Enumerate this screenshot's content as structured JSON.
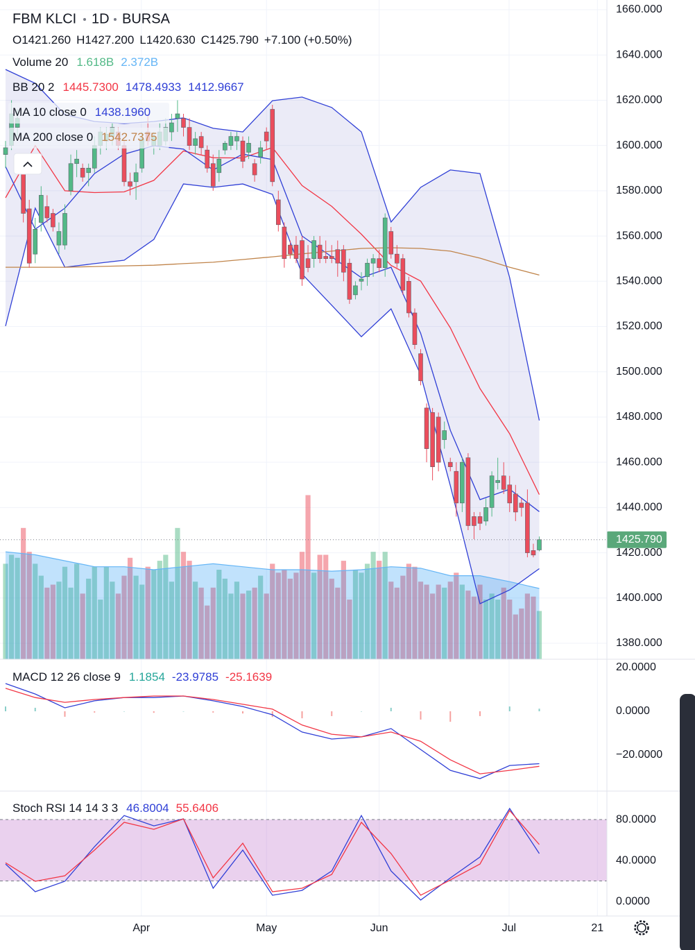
{
  "chart_data": [
    {
      "type": "candlestick",
      "title": "FBM KLCI",
      "interval": "1D",
      "exchange": "BURSA",
      "ohlc": [
        "O1421.260",
        "H1427.200",
        "L1420.630",
        "C1425.790",
        "+7.100 (+0.50%)"
      ],
      "up_color": "#53b987",
      "down_color": "#eb4d5c",
      "ylim": [
        1372.95,
        1664.3
      ],
      "yticks": [
        {
          "value": 1660,
          "label": "1660.000"
        },
        {
          "value": 1640,
          "label": "1640.000"
        },
        {
          "value": 1620,
          "label": "1620.000"
        },
        {
          "value": 1600,
          "label": "1600.000"
        },
        {
          "value": 1580,
          "label": "1580.000"
        },
        {
          "value": 1560,
          "label": "1560.000"
        },
        {
          "value": 1540,
          "label": "1540.000"
        },
        {
          "value": 1520,
          "label": "1520.000"
        },
        {
          "value": 1500,
          "label": "1500.000"
        },
        {
          "value": 1480,
          "label": "1480.000"
        },
        {
          "value": 1460,
          "label": "1460.000"
        },
        {
          "value": 1440,
          "label": "1440.000"
        },
        {
          "value": 1420,
          "label": "1420.000"
        },
        {
          "value": 1400,
          "label": "1400.000"
        },
        {
          "value": 1380,
          "label": "1380.000"
        }
      ],
      "xticks": [
        {
          "value": 22.9,
          "label": "Apr"
        },
        {
          "value": 44,
          "label": "May"
        },
        {
          "value": 63,
          "label": "Jun"
        },
        {
          "value": 84.9,
          "label": "Jul"
        },
        {
          "value": 99.8,
          "label": "21"
        }
      ],
      "grid": true,
      "last_price": {
        "value": 1425.79,
        "label": "1425.790",
        "color": "#5aa87a"
      },
      "candles": [
        [
          1596,
          1602,
          1590,
          1599
        ],
        [
          1600,
          1620,
          1598,
          1614
        ],
        [
          1608,
          1616,
          1604,
          1612
        ],
        [
          1590,
          1596,
          1566,
          1570
        ],
        [
          1572,
          1576,
          1546,
          1548
        ],
        [
          1552,
          1568,
          1548,
          1563
        ],
        [
          1566,
          1582,
          1562,
          1578
        ],
        [
          1573,
          1578,
          1566,
          1568
        ],
        [
          1570,
          1572,
          1562,
          1564
        ],
        [
          1556,
          1566,
          1552,
          1562
        ],
        [
          1556,
          1574,
          1554,
          1570
        ],
        [
          1580,
          1596,
          1578,
          1592
        ],
        [
          1592,
          1598,
          1586,
          1594
        ],
        [
          1590,
          1592,
          1584,
          1586
        ],
        [
          1588,
          1592,
          1582,
          1590
        ],
        [
          1590,
          1604,
          1588,
          1600
        ],
        [
          1600,
          1608,
          1596,
          1606
        ],
        [
          1602,
          1608,
          1598,
          1605
        ],
        [
          1604,
          1610,
          1600,
          1608
        ],
        [
          1606,
          1608,
          1598,
          1600
        ],
        [
          1600,
          1602,
          1582,
          1584
        ],
        [
          1584,
          1588,
          1578,
          1582
        ],
        [
          1584,
          1592,
          1576,
          1588
        ],
        [
          1590,
          1606,
          1588,
          1603
        ],
        [
          1606,
          1614,
          1600,
          1602
        ],
        [
          1600,
          1606,
          1596,
          1604
        ],
        [
          1600,
          1610,
          1598,
          1606
        ],
        [
          1602,
          1612,
          1600,
          1608
        ],
        [
          1606,
          1614,
          1602,
          1610
        ],
        [
          1612,
          1620,
          1606,
          1614
        ],
        [
          1612,
          1614,
          1604,
          1608
        ],
        [
          1608,
          1612,
          1598,
          1600
        ],
        [
          1600,
          1606,
          1596,
          1603
        ],
        [
          1604,
          1606,
          1596,
          1599
        ],
        [
          1598,
          1600,
          1588,
          1590
        ],
        [
          1592,
          1596,
          1580,
          1582
        ],
        [
          1588,
          1598,
          1584,
          1594
        ],
        [
          1598,
          1602,
          1596,
          1601
        ],
        [
          1600,
          1606,
          1598,
          1604
        ],
        [
          1602,
          1606,
          1598,
          1604
        ],
        [
          1602,
          1604,
          1590,
          1593
        ],
        [
          1597,
          1604,
          1594,
          1601
        ],
        [
          1592,
          1594,
          1584,
          1587
        ],
        [
          1595,
          1602,
          1592,
          1599
        ],
        [
          1606,
          1608,
          1598,
          1602
        ],
        [
          1616,
          1618,
          1582,
          1584
        ],
        [
          1576,
          1580,
          1562,
          1565
        ],
        [
          1564,
          1566,
          1546,
          1550
        ],
        [
          1556,
          1558,
          1550,
          1552
        ],
        [
          1556,
          1560,
          1548,
          1550
        ],
        [
          1558,
          1560,
          1538,
          1541
        ],
        [
          1550,
          1556,
          1544,
          1546
        ],
        [
          1550,
          1560,
          1546,
          1558
        ],
        [
          1556,
          1560,
          1548,
          1550
        ],
        [
          1551,
          1558,
          1548,
          1550
        ],
        [
          1551,
          1556,
          1548,
          1550
        ],
        [
          1554,
          1558,
          1542,
          1548
        ],
        [
          1554,
          1556,
          1540,
          1544
        ],
        [
          1548,
          1550,
          1530,
          1532
        ],
        [
          1534,
          1540,
          1532,
          1538
        ],
        [
          1540,
          1544,
          1536,
          1541
        ],
        [
          1542,
          1550,
          1538,
          1548
        ],
        [
          1548,
          1552,
          1542,
          1550
        ],
        [
          1550,
          1554,
          1544,
          1546
        ],
        [
          1546,
          1570,
          1542,
          1568
        ],
        [
          1562,
          1564,
          1550,
          1552
        ],
        [
          1552,
          1556,
          1546,
          1548
        ],
        [
          1550,
          1552,
          1534,
          1536
        ],
        [
          1540,
          1542,
          1524,
          1526
        ],
        [
          1526,
          1528,
          1510,
          1512
        ],
        [
          1508,
          1510,
          1494,
          1496
        ],
        [
          1484,
          1486,
          1460,
          1466
        ],
        [
          1482,
          1484,
          1452,
          1458
        ],
        [
          1480,
          1482,
          1456,
          1460
        ],
        [
          1470,
          1478,
          1466,
          1474
        ],
        [
          1460,
          1462,
          1456,
          1458
        ],
        [
          1456,
          1460,
          1436,
          1442
        ],
        [
          1442,
          1462,
          1438,
          1460
        ],
        [
          1462,
          1464,
          1430,
          1432
        ],
        [
          1436,
          1438,
          1426,
          1432
        ],
        [
          1436,
          1438,
          1430,
          1433
        ],
        [
          1434,
          1444,
          1432,
          1440
        ],
        [
          1440,
          1456,
          1436,
          1454
        ],
        [
          1451,
          1462,
          1448,
          1452
        ],
        [
          1454,
          1460,
          1446,
          1448
        ],
        [
          1450,
          1454,
          1438,
          1442
        ],
        [
          1446,
          1450,
          1434,
          1438
        ],
        [
          1442,
          1444,
          1436,
          1440
        ],
        [
          1442,
          1448,
          1418,
          1420
        ],
        [
          1421,
          1424,
          1418,
          1419
        ],
        [
          1421.26,
          1427.2,
          1420.63,
          1425.79
        ]
      ],
      "volume": {
        "label": "Volume 20",
        "vlim": [
          0,
          8
        ],
        "value_label": "1.618B",
        "up_color": "rgba(83,185,135,0.5)",
        "down_color": "rgba(235,77,92,0.5)",
        "values": [
          3.2,
          3.5,
          3.4,
          4.4,
          3.6,
          3.2,
          2.8,
          2.4,
          2.5,
          2.6,
          3.1,
          2.4,
          3.2,
          2.2,
          2.7,
          3.1,
          2.0,
          3.1,
          2.6,
          2.2,
          2.8,
          3.4,
          2.8,
          2.5,
          3.1,
          3.0,
          3.3,
          3.5,
          2.6,
          4.4,
          3.6,
          3.3,
          2.6,
          2.4,
          1.8,
          2.4,
          3.0,
          2.7,
          2.2,
          2.6,
          2.2,
          2.3,
          2.4,
          2.8,
          2.2,
          3.2,
          2.9,
          3.0,
          2.7,
          2.9,
          3.6,
          5.5,
          2.9,
          3.5,
          3.5,
          2.7,
          2.4,
          3.3,
          2.0,
          3.0,
          2.9,
          3.2,
          3.6,
          3.3,
          3.6,
          2.6,
          2.4,
          2.8,
          3.2,
          3.1,
          2.6,
          2.5,
          2.2,
          2.5,
          2.4,
          2.6,
          2.9,
          2.5,
          2.3,
          2.1,
          2.5,
          2.0,
          2.2,
          2.0,
          2.4,
          2.0,
          1.5,
          1.7,
          2.2,
          2.1,
          1.618
        ],
        "ma": {
          "color": "#64b5f6",
          "fill": "rgba(33,150,243,0.28)",
          "value_label": "2.372B",
          "values": [
            3.6,
            3.5,
            3.3,
            3.1,
            3.1,
            3.0,
            3.1,
            3.2,
            3.1,
            3.0,
            3.0,
            2.95,
            3.0,
            3.1,
            3.05,
            2.8,
            2.8,
            2.6,
            2.372
          ]
        }
      },
      "line_x": [
        0,
        5,
        10,
        15,
        20,
        25,
        30,
        35,
        40,
        45,
        50,
        55,
        60,
        65,
        70,
        75,
        80,
        85,
        90
      ],
      "bb": {
        "label": "BB 20 2",
        "fill": "rgba(120,123,200,0.15)",
        "series": [
          {
            "color": "#f23645",
            "value_label": "1445.7300",
            "values": [
              1576.9,
              1600,
              1580,
              1579.2,
              1579.5,
              1584.6,
              1597.6,
              1594.6,
              1594.5,
              1599.1,
              1582.3,
              1573.1,
              1560.8,
              1547,
              1540.1,
              1519.4,
              1492.6,
              1472.6,
              1445.73
            ]
          },
          {
            "color": "#2f3fd6",
            "value_label": "1478.4933",
            "values": [
              1633.6,
              1627.5,
              1613.7,
              1610.6,
              1609.7,
              1610.6,
              1612.2,
              1607.6,
              1606,
              1619.8,
              1621.4,
              1616.8,
              1606,
              1566.2,
              1581.5,
              1589.2,
              1587.6,
              1541.6,
              1478.4933
            ]
          },
          {
            "color": "#2f3fd6",
            "value_label": "1412.9667",
            "values": [
              1520.2,
              1572.3,
              1546.2,
              1547.8,
              1549.3,
              1558.5,
              1583,
              1581.5,
              1583,
              1578.4,
              1543.2,
              1529.4,
              1515.5,
              1527.8,
              1498.7,
              1449.6,
              1397.5,
              1403.6,
              1412.9667
            ]
          }
        ]
      },
      "ma": [
        {
          "label": "MA 10 close 0",
          "color": "#2f3fd6",
          "value_label": "1438.1960",
          "values": [
            1590.7,
            1563,
            1572.3,
            1587.6,
            1596.2,
            1599.9,
            1598.4,
            1589.2,
            1596.2,
            1593.8,
            1560,
            1550.8,
            1541.6,
            1546.2,
            1517,
            1474.1,
            1443.5,
            1448.1,
            1438.196
          ]
        },
        {
          "label": "MA 200 close 0",
          "color": "#c0844a",
          "value_label": "1542.7375",
          "values": [
            1546.2,
            1546.2,
            1546.2,
            1546.5,
            1546.8,
            1547.1,
            1547.8,
            1548.4,
            1549.6,
            1550.8,
            1552.1,
            1553.3,
            1554.5,
            1554.8,
            1554.5,
            1553.3,
            1550.2,
            1546.2,
            1542.7375
          ]
        }
      ]
    },
    {
      "type": "macd",
      "label": "MACD 12 26 close 9",
      "ylim": [
        -36,
        22
      ],
      "yticks": [
        {
          "value": 20,
          "label": "20.0000"
        },
        {
          "value": 0,
          "label": "0.0000"
        },
        {
          "value": -20,
          "label": "−20.0000"
        }
      ],
      "line_x": [
        0,
        5,
        10,
        15,
        20,
        25,
        30,
        35,
        40,
        45,
        50,
        55,
        60,
        65,
        70,
        75,
        80,
        85,
        90
      ],
      "histogram": {
        "pos_color": "rgba(38,166,154,0.55)",
        "neg_color": "rgba(239,83,80,0.55)",
        "label_color": "#26a69a",
        "value_label": "1.1854",
        "values": [
          2.2,
          1.6,
          -2.5,
          -0.6,
          0,
          -0.7,
          0,
          -0.6,
          -1,
          -2.6,
          -3.2,
          -2.2,
          0,
          1.6,
          -3.8,
          -4.8,
          -2.2,
          2.2,
          1.1854
        ]
      },
      "series": [
        {
          "color": "#2f3fd6",
          "value_label": "-23.9785",
          "values": [
            12.7,
            7.9,
            1.6,
            4.8,
            6.3,
            6.3,
            7,
            4.8,
            2.2,
            -1.6,
            -9.5,
            -12.7,
            -11.7,
            -7.9,
            -17.5,
            -27,
            -30.8,
            -24.8,
            -23.9785
          ]
        },
        {
          "color": "#f23645",
          "value_label": "-25.1639",
          "values": [
            10.5,
            6.3,
            4.1,
            5.4,
            6.3,
            7,
            7,
            5.4,
            3.2,
            1,
            -6.3,
            -10.5,
            -11.7,
            -9.5,
            -13.7,
            -22.2,
            -28.6,
            -27,
            -25.1639
          ]
        }
      ]
    },
    {
      "type": "stoch",
      "label": "Stoch RSI 14 14 3 3",
      "ylim": [
        -14.2,
        105.8
      ],
      "yticks": [
        {
          "value": 80,
          "label": "80.0000"
        },
        {
          "value": 40,
          "label": "40.0000"
        },
        {
          "value": 0,
          "label": "0.0000"
        }
      ],
      "bands": [
        20,
        80
      ],
      "band_fill": "rgba(186,104,200,0.3)",
      "line_x": [
        0,
        5,
        10,
        15,
        20,
        25,
        30,
        35,
        40,
        45,
        50,
        55,
        60,
        65,
        70,
        75,
        80,
        85,
        90
      ],
      "series": [
        {
          "color": "#2f3fd6",
          "value_label": "46.8004",
          "values": [
            36.6,
            9.5,
            19.7,
            53.6,
            84,
            73.9,
            80.7,
            12.9,
            50.2,
            6.1,
            10.8,
            29.8,
            84,
            29.8,
            1.4,
            23,
            43.4,
            90.8,
            46.8004
          ]
        },
        {
          "color": "#f23645",
          "value_label": "55.6406",
          "values": [
            37.8,
            19.7,
            25.1,
            50.2,
            77.3,
            70.5,
            80.7,
            23,
            56.9,
            9.5,
            12.9,
            26.4,
            77.3,
            46.8,
            6.1,
            21,
            36.6,
            88.8,
            55.6406
          ]
        }
      ]
    }
  ]
}
